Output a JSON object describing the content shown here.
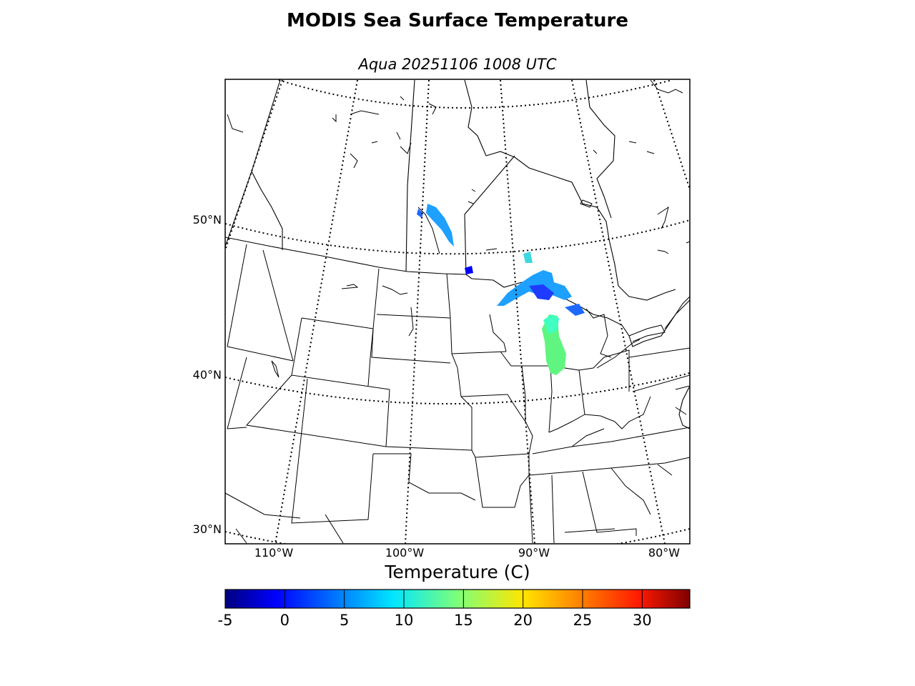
{
  "title": "MODIS Sea Surface Temperature",
  "subtitle": "Aqua 20251106 1008 UTC",
  "lat_labels": [
    "50°N",
    "40°N",
    "30°N"
  ],
  "lon_labels": [
    "110°W",
    "100°W",
    "90°W",
    "80°W"
  ],
  "colorbar": {
    "title": "Temperature (C)",
    "min": -5,
    "max": 34,
    "ticks": [
      "-5",
      "0",
      "5",
      "10",
      "15",
      "20",
      "25",
      "30"
    ],
    "colormap": "jet"
  },
  "colors": {
    "cold": "#0000ff",
    "cool": "#1ea0ff",
    "mild": "#40ffc0",
    "warm": "#5ff580"
  }
}
